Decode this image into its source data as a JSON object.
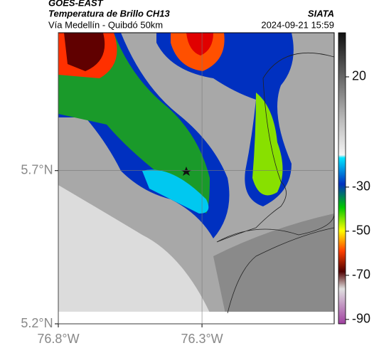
{
  "chart_data": {
    "type": "map",
    "source": "GOES-EAST",
    "title": "Temperatura de Brillo CH13",
    "subtitle": "Vía Medellín - Quibdó 50km",
    "credit": "SIATA",
    "timestamp": "2024-09-21 15:59",
    "xlim": [
      -76.8,
      -75.84
    ],
    "ylim": [
      5.2,
      6.15
    ],
    "xticks": [
      {
        "value": -76.8,
        "label": "76.8°W"
      },
      {
        "value": -76.3,
        "label": "76.3°W"
      }
    ],
    "yticks": [
      {
        "value": 5.2,
        "label": "5.2°N"
      },
      {
        "value": 5.7,
        "label": "5.7°N"
      }
    ],
    "grid": true,
    "colorbar": {
      "lim": [
        -92,
        40
      ],
      "ticks": [
        20,
        -30,
        -50,
        -70,
        -90
      ]
    }
  }
}
